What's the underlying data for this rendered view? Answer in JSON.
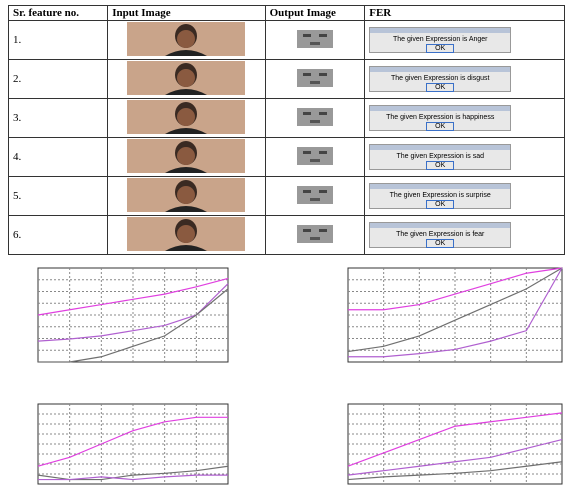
{
  "table": {
    "header": [
      "Sr. feature no.",
      "Input Image",
      "Output Image",
      "FER"
    ],
    "rows": [
      {
        "no": "1.",
        "fer": "The given Expression is Anger",
        "button": "OK"
      },
      {
        "no": "2.",
        "fer": "The given Expression is disgust",
        "button": "OK"
      },
      {
        "no": "3.",
        "fer": "The given Expression is happiness",
        "button": "OK"
      },
      {
        "no": "4.",
        "fer": "The given Expression is sad",
        "button": "OK"
      },
      {
        "no": "5.",
        "fer": "The given Expression is surprise",
        "button": "OK"
      },
      {
        "no": "6.",
        "fer": "The given Expression is fear",
        "button": "OK"
      }
    ]
  },
  "chart_data": [
    {
      "type": "line",
      "x": [
        1,
        2,
        3,
        4,
        5,
        6,
        7
      ],
      "xlim": [
        1,
        7
      ],
      "ylim": [
        0,
        90
      ],
      "series": [
        {
          "color": "#e040e0",
          "values": [
            45,
            50,
            55,
            60,
            65,
            72,
            80
          ]
        },
        {
          "color": "#b060d0",
          "values": [
            20,
            22,
            25,
            30,
            35,
            45,
            75
          ]
        },
        {
          "color": "#707070",
          "values": [
            0,
            0,
            5,
            15,
            25,
            45,
            70
          ]
        }
      ]
    },
    {
      "type": "line",
      "x": [
        1,
        2,
        3,
        4,
        5,
        6,
        7
      ],
      "xlim": [
        1,
        7
      ],
      "ylim": [
        0,
        90
      ],
      "series": [
        {
          "color": "#e040e0",
          "values": [
            50,
            50,
            55,
            65,
            75,
            85,
            90
          ]
        },
        {
          "color": "#707070",
          "values": [
            10,
            15,
            25,
            40,
            55,
            70,
            90
          ]
        },
        {
          "color": "#b060d0",
          "values": [
            5,
            5,
            8,
            12,
            20,
            30,
            90
          ]
        }
      ]
    },
    {
      "type": "line",
      "x": [
        1,
        2,
        3,
        4,
        5,
        6,
        7
      ],
      "xlim": [
        1,
        7
      ],
      "ylim": [
        0,
        90
      ],
      "series": [
        {
          "color": "#e040e0",
          "values": [
            20,
            30,
            45,
            60,
            70,
            75,
            75
          ]
        },
        {
          "color": "#707070",
          "values": [
            10,
            5,
            5,
            10,
            12,
            15,
            20
          ]
        },
        {
          "color": "#b060d0",
          "values": [
            5,
            5,
            8,
            5,
            8,
            10,
            10
          ]
        }
      ]
    },
    {
      "type": "line",
      "x": [
        1,
        2,
        3,
        4,
        5,
        6,
        7
      ],
      "xlim": [
        1,
        7
      ],
      "ylim": [
        0,
        90
      ],
      "series": [
        {
          "color": "#e040e0",
          "values": [
            20,
            35,
            50,
            65,
            70,
            75,
            80
          ]
        },
        {
          "color": "#b060d0",
          "values": [
            10,
            15,
            20,
            25,
            30,
            40,
            50
          ]
        },
        {
          "color": "#707070",
          "values": [
            5,
            8,
            10,
            12,
            15,
            20,
            25
          ]
        }
      ]
    }
  ]
}
